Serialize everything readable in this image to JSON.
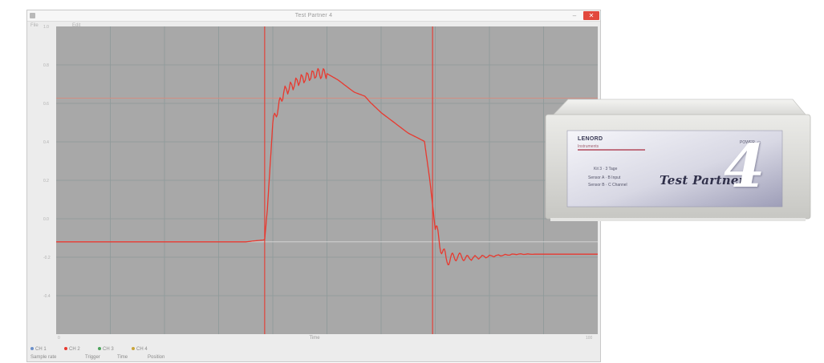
{
  "window": {
    "title": "Test Partner 4",
    "close_label": "✕",
    "minimize_label": "–",
    "toolbar": [
      "File",
      "Edit"
    ]
  },
  "plot": {
    "background": "#a8a8a8",
    "trace_color": "#e8392f",
    "cursor_color": "#e8392f",
    "x_axis_label": "Time",
    "y_tick_labels": [
      "1.0",
      "0.8",
      "0.6",
      "0.4",
      "0.2",
      "0.0",
      "-0.2",
      "-0.4"
    ],
    "x_tick_labels": [
      "0",
      "100"
    ]
  },
  "status_bar": {
    "row1": [
      "CH 1",
      "CH 2",
      "CH 3",
      "CH 4"
    ],
    "row2": [
      "Sample rate",
      "Trigger",
      "Time",
      "Position"
    ]
  },
  "chart_data": {
    "type": "line",
    "series": [
      {
        "name": "CH 1",
        "x": [
          0,
          5,
          10,
          15,
          20,
          25,
          30,
          35,
          38.5,
          39,
          40,
          42,
          45,
          48,
          50,
          52,
          55,
          57,
          58,
          60,
          65,
          68,
          69,
          70,
          72,
          74,
          76,
          80,
          85,
          90,
          95,
          100
        ],
        "y": [
          0.0,
          0.0,
          0.0,
          0.0,
          0.0,
          0.0,
          0.0,
          0.0,
          0.01,
          0.16,
          0.58,
          0.73,
          0.79,
          0.82,
          0.82,
          0.79,
          0.73,
          0.71,
          0.68,
          0.63,
          0.53,
          0.49,
          0.3,
          0.06,
          -0.09,
          -0.07,
          -0.08,
          -0.07,
          -0.06,
          -0.06,
          -0.06,
          -0.06
        ]
      }
    ],
    "cursors_x": [
      38.5,
      69.5
    ],
    "xlim": [
      0,
      100
    ],
    "ylim": [
      -0.45,
      1.05
    ],
    "grid": true
  },
  "device": {
    "brand": "LENORD",
    "brand_sub": "Instruments",
    "line1": "Kit 3 · 3 Tage",
    "line2": "Sensor A · B Input",
    "line3": "Sensor B · C Channel",
    "power_label": "POWER",
    "model_name": "Test Partner",
    "model_number": "4"
  }
}
